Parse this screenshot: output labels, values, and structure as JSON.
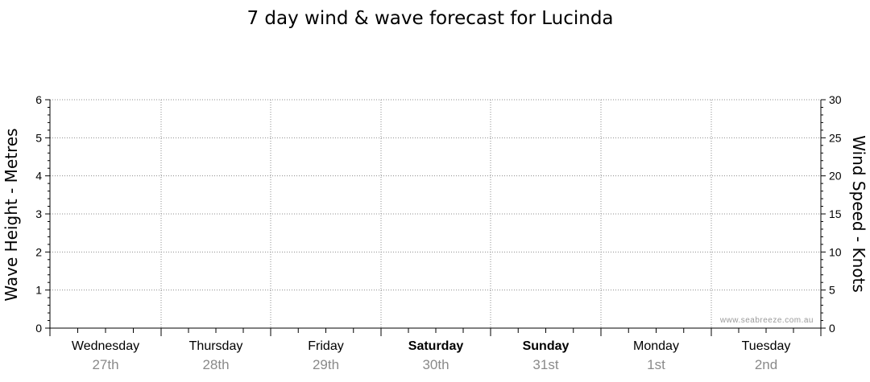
{
  "chart_data": {
    "type": "line",
    "title": "7 day wind & wave forecast for Lucinda",
    "ylabel_left": "Wave Height - Metres",
    "ylabel_right": "Wind Speed - Knots",
    "ylim_left": [
      0,
      6
    ],
    "ylim_right": [
      0,
      30
    ],
    "yticks_left": [
      "0",
      "1",
      "2",
      "3",
      "4",
      "5",
      "6"
    ],
    "yticks_right": [
      "0",
      "5",
      "10",
      "15",
      "20",
      "25",
      "30"
    ],
    "grid": true,
    "days": [
      {
        "name": "Wednesday",
        "date": "27th",
        "weekend": false
      },
      {
        "name": "Thursday",
        "date": "28th",
        "weekend": false
      },
      {
        "name": "Friday",
        "date": "29th",
        "weekend": false
      },
      {
        "name": "Saturday",
        "date": "30th",
        "weekend": true
      },
      {
        "name": "Sunday",
        "date": "31st",
        "weekend": true
      },
      {
        "name": "Monday",
        "date": "1st",
        "weekend": false
      },
      {
        "name": "Tuesday",
        "date": "2nd",
        "weekend": false
      }
    ],
    "series": []
  },
  "watermark": "www.seabreeze.com.au"
}
